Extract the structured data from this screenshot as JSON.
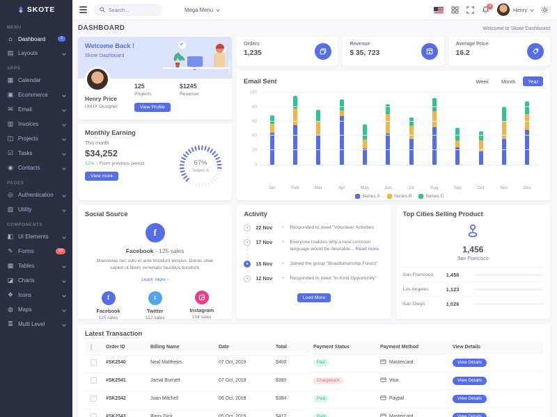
{
  "theme": {
    "primary": "#556ee6",
    "success": "#34c38f",
    "warning": "#f1b44c",
    "danger": "#f46a6a",
    "info": "#50a5f1",
    "pink": "#e83e8c",
    "sidebar_bg": "#2a3042",
    "body_bg": "#f8f8fb"
  },
  "sidebar": {
    "logo": "SKOTE",
    "sections": [
      {
        "label": "MENU",
        "items": [
          {
            "icon_name": "home-icon",
            "glyph": "⌂",
            "label": "Dashboard",
            "badge": "3",
            "badge_color": "#556ee6",
            "active": true
          },
          {
            "icon_name": "layouts-icon",
            "glyph": "▤",
            "label": "Layouts",
            "chevron": true
          }
        ]
      },
      {
        "label": "APPS",
        "items": [
          {
            "icon_name": "calendar-icon",
            "glyph": "▦",
            "label": "Calendar"
          },
          {
            "icon_name": "ecommerce-icon",
            "glyph": "▣",
            "label": "Ecommerce",
            "chevron": true
          },
          {
            "icon_name": "email-icon",
            "glyph": "✉",
            "label": "Email",
            "chevron": true
          },
          {
            "icon_name": "invoices-icon",
            "glyph": "▥",
            "label": "Invoices",
            "chevron": true
          },
          {
            "icon_name": "projects-icon",
            "glyph": "◫",
            "label": "Projects",
            "chevron": true
          },
          {
            "icon_name": "tasks-icon",
            "glyph": "☑",
            "label": "Tasks",
            "chevron": true
          },
          {
            "icon_name": "contacts-icon",
            "glyph": "◉",
            "label": "Contacts",
            "chevron": true
          }
        ]
      },
      {
        "label": "PAGES",
        "items": [
          {
            "icon_name": "authentication-icon",
            "glyph": "◎",
            "label": "Authentication",
            "chevron": true
          },
          {
            "icon_name": "utility-icon",
            "glyph": "▧",
            "label": "Utility",
            "chevron": true
          }
        ]
      },
      {
        "label": "COMPONENTS",
        "items": [
          {
            "icon_name": "ui-elements-icon",
            "glyph": "◧",
            "label": "UI Elements",
            "chevron": true
          },
          {
            "icon_name": "forms-icon",
            "glyph": "✎",
            "label": "Forms",
            "badge": "10",
            "badge_color": "#f46a6a"
          },
          {
            "icon_name": "tables-icon",
            "glyph": "▦",
            "label": "Tables",
            "chevron": true
          },
          {
            "icon_name": "charts-icon",
            "glyph": "◪",
            "label": "Charts",
            "chevron": true
          },
          {
            "icon_name": "icons-icon",
            "glyph": "❖",
            "label": "Icons",
            "chevron": true
          },
          {
            "icon_name": "maps-icon",
            "glyph": "◍",
            "label": "Maps",
            "chevron": true
          },
          {
            "icon_name": "multi-level-icon",
            "glyph": "≣",
            "label": "Multi Level",
            "chevron": true
          }
        ]
      }
    ]
  },
  "header": {
    "search_placeholder": "Search...",
    "mega_menu_label": "Mega Menu",
    "notification_count": "3",
    "user_name": "Henry"
  },
  "page": {
    "title": "DASHBOARD",
    "breadcrumb": "Welcome to Skote Dashboard"
  },
  "welcome": {
    "title": "Welcome Back !",
    "subtitle": "Skote Dashboard",
    "user_name": "Henry Price",
    "user_role": "UI/UX Designer",
    "projects_value": "125",
    "projects_label": "Projects",
    "revenue_value": "$1245",
    "revenue_label": "Revenue",
    "button_label": "View Profile"
  },
  "monthly_earning": {
    "title": "Monthly Earning",
    "period_label": "This month",
    "amount": "$34,252",
    "delta": "12% ↑",
    "delta_note": "From previous period",
    "button_label": "View more",
    "radial_pct": 67,
    "radial_value": "67%",
    "radial_label": "Series A"
  },
  "stats": [
    {
      "label": "Orders",
      "value": "1,235",
      "icon": "copy-icon"
    },
    {
      "label": "Revenue",
      "value": "$ 35, 723",
      "icon": "archive-icon"
    },
    {
      "label": "Average Price",
      "value": "16.2",
      "icon": "tag-icon"
    }
  ],
  "email_sent": {
    "title": "Email Sent",
    "range_buttons": [
      "Week",
      "Month",
      "Year"
    ],
    "active_range": "Year"
  },
  "chart_data": {
    "type": "bar",
    "stacked": true,
    "title": "Email Sent",
    "categories": [
      "Jan",
      "Feb",
      "Mar",
      "Apr",
      "May",
      "Jun",
      "Jul",
      "Aug",
      "Sep",
      "Oct",
      "Nov",
      "Dec"
    ],
    "series": [
      {
        "name": "Series A",
        "color": "#556ee6",
        "values": [
          44,
          55,
          41,
          67,
          22,
          43,
          36,
          52,
          24,
          18,
          36,
          48
        ]
      },
      {
        "name": "Series B",
        "color": "#f1b44c",
        "values": [
          13,
          23,
          20,
          8,
          13,
          27,
          18,
          22,
          10,
          16,
          24,
          22
        ]
      },
      {
        "name": "Series C",
        "color": "#34c38f",
        "values": [
          11,
          17,
          15,
          15,
          21,
          14,
          11,
          18,
          17,
          12,
          20,
          18
        ]
      }
    ],
    "ylim": [
      0,
      100
    ],
    "yticks": [
      0,
      20,
      40,
      60,
      80,
      100
    ],
    "grid": true,
    "legend_position": "bottom"
  },
  "social": {
    "title": "Social Source",
    "top_name": "Facebook",
    "top_rest": " - 125 sales",
    "description": "Maecenas nec odio et ante tincidunt tempus. Donec vitae sapien ut libero venenatis faucibus tincidunt.",
    "link_label": "Learn more ›",
    "items": [
      {
        "name": "Facebook",
        "sales": "125 sales",
        "color": "#556ee6",
        "icon": "facebook-icon",
        "glyph": "f"
      },
      {
        "name": "Twitter",
        "sales": "112 sales",
        "color": "#50a5f1",
        "icon": "twitter-icon",
        "glyph": "t"
      },
      {
        "name": "Instagram",
        "sales": "104 sales",
        "color": "#e83e8c",
        "icon": "instagram-icon",
        "glyph": "insta"
      }
    ]
  },
  "activity": {
    "title": "Activity",
    "button_label": "Load More",
    "arrow": "→",
    "items": [
      {
        "date": "22 Nov",
        "text": "Responded to need \"Volunteer Activities",
        "active": false
      },
      {
        "date": "17 Nov",
        "text": "Everyone realizes why a new common language would be desirable...",
        "link": "Read more",
        "active": false
      },
      {
        "date": "15 Nov",
        "text": "Joined the group \"Boardsmanship Forum\"",
        "active": true
      },
      {
        "date": "12 Nov",
        "text": "Responded to need \"In-Kind Opportunity\"",
        "active": false
      }
    ]
  },
  "top_cities": {
    "title": "Top Cities Selling Product",
    "highlight_value": "1,456",
    "highlight_city": "San Francisco",
    "rows": [
      {
        "city": "San Francisco",
        "value": "1,456",
        "color": "#556ee6",
        "pct": 100
      },
      {
        "city": "Los Angeles",
        "value": "1,123",
        "color": "#34c38f",
        "pct": 77
      },
      {
        "city": "San Diego",
        "value": "1,026",
        "color": "#f1b44c",
        "pct": 70
      }
    ]
  },
  "transactions": {
    "title": "Latest Transaction",
    "columns": [
      "Order ID",
      "Billing Name",
      "Date",
      "Total",
      "Payment Status",
      "Payment Method",
      "View Details"
    ],
    "view_details_label": "View Details",
    "rows": [
      {
        "order_id": "#SK2540",
        "name": "Neal Matthews",
        "date": "07 Oct, 2019",
        "total": "$400",
        "status": "Paid",
        "status_color": "#34c38f",
        "method": "Mastercard"
      },
      {
        "order_id": "#SK2541",
        "name": "Jamal Burnett",
        "date": "07 Oct, 2019",
        "total": "$380",
        "status": "Chargeback",
        "status_color": "#f46a6a",
        "method": "Visa"
      },
      {
        "order_id": "#SK2542",
        "name": "Juan Mitchell",
        "date": "06 Oct, 2019",
        "total": "$384",
        "status": "Paid",
        "status_color": "#34c38f",
        "method": "Paypal"
      },
      {
        "order_id": "#SK2543",
        "name": "Barry Dick",
        "date": "05 Oct, 2019",
        "total": "$412",
        "status": "Paid",
        "status_color": "#34c38f",
        "method": "Mastercard"
      }
    ]
  }
}
